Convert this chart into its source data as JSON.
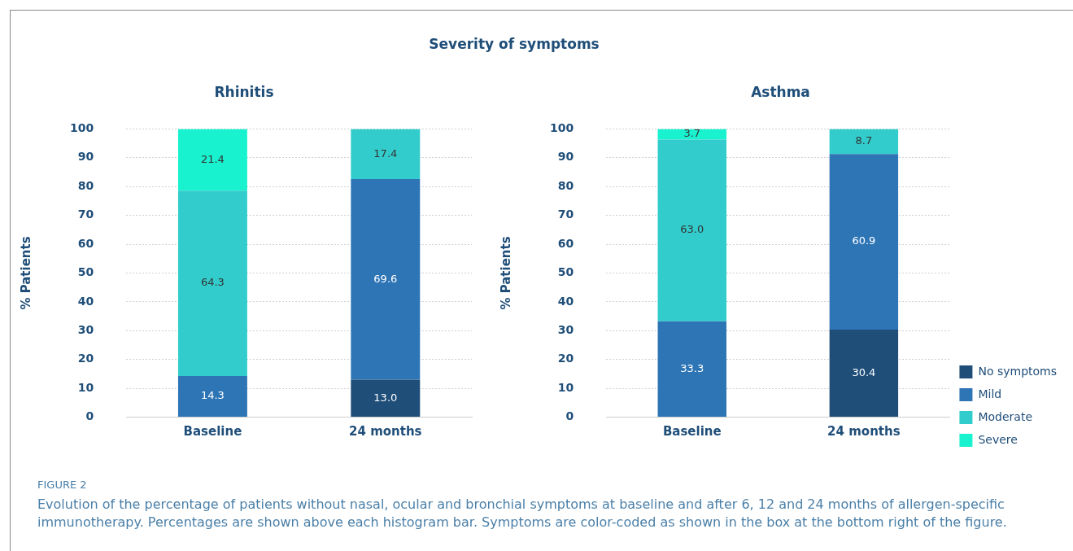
{
  "chart_data": [
    {
      "type": "bar",
      "title": "Severity of symptoms",
      "subtitle": "Rhinitis",
      "ylabel": "% Patients",
      "categories": [
        "Baseline",
        "24 months"
      ],
      "stacked": true,
      "ylim": [
        0,
        100
      ],
      "yticks": [
        0,
        10,
        20,
        30,
        40,
        50,
        60,
        70,
        80,
        90,
        100
      ],
      "grid": "y",
      "legend": false,
      "series": [
        {
          "color": "#1f4e79",
          "values": [
            null,
            13.0
          ],
          "value_labels": [
            null,
            "13.0"
          ]
        },
        {
          "color": "#2e75b6",
          "values": [
            14.3,
            69.6
          ],
          "value_labels": [
            "14.3",
            "69.6"
          ]
        },
        {
          "color": "#33cccc",
          "values": [
            64.3,
            17.4
          ],
          "value_labels": [
            "64.3",
            "17.4"
          ]
        },
        {
          "color": "#19f2cf",
          "values": [
            21.4,
            null
          ],
          "value_labels": [
            "21.4",
            null
          ]
        }
      ]
    },
    {
      "type": "bar",
      "title": "Asthma",
      "ylabel": "% Patients",
      "categories": [
        "Baseline",
        "24 months"
      ],
      "stacked": true,
      "ylim": [
        0,
        100
      ],
      "yticks": [
        0,
        10,
        20,
        30,
        40,
        50,
        60,
        70,
        80,
        90,
        100
      ],
      "grid": "y",
      "legend": "right",
      "annotations": [
        "FIGURE 2",
        "Evolution of the percentage of patients without nasal, ocular and bronchial symptoms at baseline and after 6, 12 and 24 months of allergen-specific immunotherapy. Percentages are shown above each histogram bar. Symptoms are color-coded as shown in the box at the bottom right of the figure."
      ],
      "series": [
        {
          "name": "No symptoms",
          "color": "#1f4e79",
          "values": [
            null,
            30.4
          ],
          "value_labels": [
            null,
            "30.4"
          ]
        },
        {
          "name": "Mild",
          "color": "#2e75b6",
          "values": [
            33.3,
            60.9
          ],
          "value_labels": [
            "33.3",
            "60.9"
          ]
        },
        {
          "name": "Moderate",
          "color": "#33cccc",
          "values": [
            63.0,
            8.7
          ],
          "value_labels": [
            "63.0",
            "8.7"
          ]
        },
        {
          "name": "Severe",
          "color": "#19f2cf",
          "values": [
            3.7,
            null
          ],
          "value_labels": [
            "3.7",
            null
          ]
        }
      ]
    }
  ]
}
